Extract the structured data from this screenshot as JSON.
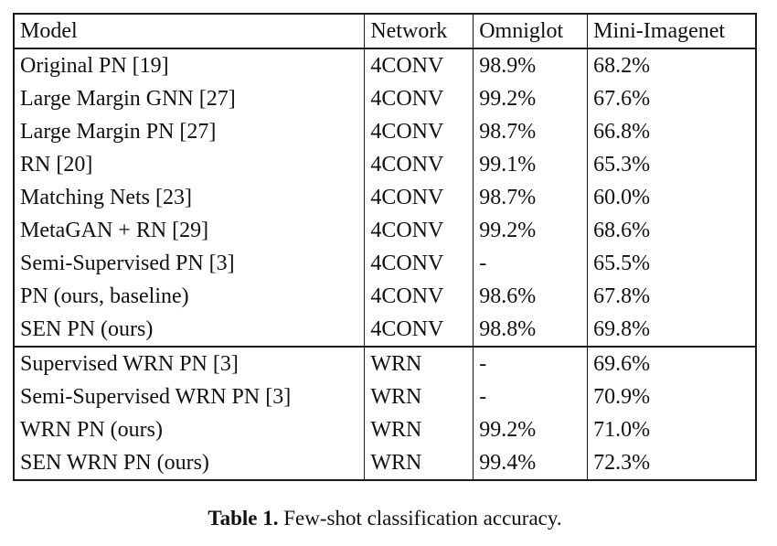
{
  "table": {
    "columns": [
      "Model",
      "Network",
      "Omniglot",
      "Mini-Imagenet"
    ],
    "sections": [
      {
        "rows": [
          {
            "cells": [
              "Original PN [19]",
              "4CONV",
              "98.9%",
              "68.2%"
            ],
            "bold": [
              false,
              false,
              false,
              false
            ]
          },
          {
            "cells": [
              "Large Margin GNN [27]",
              "4CONV",
              "99.2%",
              "67.6%"
            ],
            "bold": [
              false,
              false,
              true,
              false
            ]
          },
          {
            "cells": [
              "Large Margin PN [27]",
              "4CONV",
              "98.7%",
              "66.8%"
            ],
            "bold": [
              false,
              false,
              false,
              false
            ]
          },
          {
            "cells": [
              "RN [20]",
              "4CONV",
              "99.1%",
              "65.3%"
            ],
            "bold": [
              false,
              false,
              false,
              false
            ]
          },
          {
            "cells": [
              "Matching Nets [23]",
              "4CONV",
              "98.7%",
              "60.0%"
            ],
            "bold": [
              false,
              false,
              false,
              false
            ]
          },
          {
            "cells": [
              "MetaGAN + RN [29]",
              "4CONV",
              "99.2%",
              "68.6%"
            ],
            "bold": [
              false,
              false,
              true,
              false
            ]
          },
          {
            "cells": [
              "Semi-Supervised PN [3]",
              "4CONV",
              "-",
              "65.5%"
            ],
            "bold": [
              false,
              false,
              false,
              false
            ]
          },
          {
            "cells": [
              "PN (ours, baseline)",
              "4CONV",
              "98.6%",
              "67.8%"
            ],
            "bold": [
              false,
              false,
              false,
              false
            ]
          },
          {
            "cells": [
              "SEN PN (ours)",
              "4CONV",
              "98.8%",
              "69.8%"
            ],
            "bold": [
              true,
              true,
              false,
              true
            ]
          }
        ]
      },
      {
        "rows": [
          {
            "cells": [
              "Supervised WRN PN [3]",
              "WRN",
              "-",
              "69.6%"
            ],
            "bold": [
              false,
              false,
              false,
              false
            ]
          },
          {
            "cells": [
              "Semi-Supervised WRN PN [3]",
              "WRN",
              "-",
              "70.9%"
            ],
            "bold": [
              false,
              false,
              false,
              false
            ]
          },
          {
            "cells": [
              "WRN PN (ours)",
              "WRN",
              "99.2%",
              "71.0%"
            ],
            "bold": [
              false,
              false,
              false,
              false
            ]
          },
          {
            "cells": [
              "SEN WRN PN (ours)",
              "WRN",
              "99.4%",
              "72.3%"
            ],
            "bold": [
              true,
              true,
              true,
              true
            ]
          }
        ]
      }
    ]
  },
  "caption": {
    "label": "Table 1.",
    "text": "Few-shot classification accuracy."
  }
}
